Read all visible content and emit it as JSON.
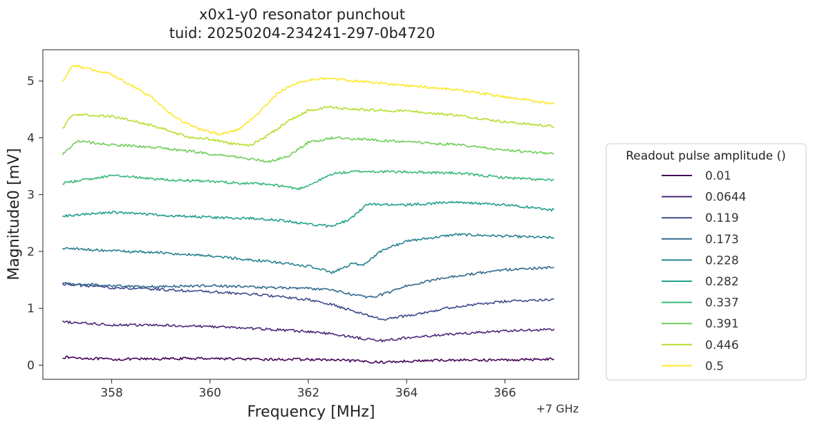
{
  "chart_data": {
    "type": "line",
    "title": "x0x1-y0 resonator punchout",
    "subtitle": "tuid: 20250204-234241-297-0b4720",
    "xlabel": "Frequency [MHz]",
    "ylabel": "Magnitude0 [mV]",
    "x_offset_label": "+7 GHz",
    "xlim": [
      356.6,
      367.5
    ],
    "ylim": [
      -0.25,
      5.55
    ],
    "xticks": [
      358,
      360,
      362,
      364,
      366
    ],
    "yticks": [
      0,
      1,
      2,
      3,
      4,
      5
    ],
    "grid": false,
    "legend": {
      "title": "Readout pulse amplitude ()",
      "placement": "right-center"
    },
    "series": [
      {
        "name": "0.01",
        "color": "#440154",
        "x": [
          357,
          358,
          359,
          360,
          361,
          362,
          362.5,
          363,
          363.5,
          364,
          365,
          366,
          367
        ],
        "y": [
          0.14,
          0.1,
          0.11,
          0.12,
          0.1,
          0.1,
          0.09,
          0.07,
          0.05,
          0.07,
          0.09,
          0.09,
          0.11
        ]
      },
      {
        "name": "0.0644",
        "color": "#482878",
        "x": [
          357,
          358,
          359,
          360,
          361,
          362,
          362.5,
          363,
          363.5,
          364,
          365,
          366,
          367
        ],
        "y": [
          0.76,
          0.71,
          0.7,
          0.68,
          0.64,
          0.59,
          0.55,
          0.48,
          0.43,
          0.48,
          0.55,
          0.6,
          0.63
        ]
      },
      {
        "name": "0.119",
        "color": "#3e4989",
        "x": [
          357,
          358,
          359,
          360,
          361,
          362,
          362.5,
          363,
          363.5,
          364,
          365,
          366,
          367
        ],
        "y": [
          1.43,
          1.36,
          1.33,
          1.29,
          1.24,
          1.15,
          1.06,
          0.93,
          0.8,
          0.87,
          1.03,
          1.12,
          1.16
        ]
      },
      {
        "name": "0.173",
        "color": "#31688e",
        "x": [
          357,
          358,
          359,
          360,
          361,
          362,
          362.5,
          363,
          363.3,
          363.6,
          364,
          365,
          366,
          367
        ],
        "y": [
          1.44,
          1.4,
          1.38,
          1.4,
          1.37,
          1.35,
          1.32,
          1.22,
          1.19,
          1.27,
          1.4,
          1.57,
          1.68,
          1.72
        ]
      },
      {
        "name": "0.228",
        "color": "#26828e",
        "x": [
          357,
          358,
          359,
          360,
          361,
          362,
          362.5,
          362.9,
          363.1,
          363.5,
          364,
          365,
          366,
          367
        ],
        "y": [
          2.06,
          2.01,
          1.98,
          1.92,
          1.84,
          1.74,
          1.63,
          1.79,
          1.76,
          2.02,
          2.18,
          2.3,
          2.27,
          2.24
        ]
      },
      {
        "name": "0.282",
        "color": "#1f9e89",
        "x": [
          357,
          358,
          359,
          360,
          361,
          361.5,
          362,
          362.4,
          362.6,
          362.9,
          363.2,
          364,
          365,
          366,
          367
        ],
        "y": [
          2.62,
          2.69,
          2.64,
          2.6,
          2.58,
          2.54,
          2.48,
          2.45,
          2.47,
          2.6,
          2.83,
          2.82,
          2.87,
          2.82,
          2.73
        ]
      },
      {
        "name": "0.337",
        "color": "#35b779",
        "x": [
          357,
          358,
          359,
          360,
          361,
          361.5,
          361.8,
          362.1,
          362.5,
          363,
          364,
          365,
          366,
          367
        ],
        "y": [
          3.2,
          3.34,
          3.27,
          3.23,
          3.19,
          3.15,
          3.1,
          3.2,
          3.37,
          3.41,
          3.4,
          3.38,
          3.3,
          3.25
        ]
      },
      {
        "name": "0.391",
        "color": "#6ece58",
        "x": [
          357,
          357.3,
          358,
          359,
          360,
          360.7,
          361.2,
          361.6,
          362,
          362.5,
          363,
          364,
          365,
          366,
          367
        ],
        "y": [
          3.72,
          3.94,
          3.88,
          3.82,
          3.72,
          3.64,
          3.58,
          3.68,
          3.92,
          4.0,
          3.98,
          3.93,
          3.88,
          3.78,
          3.72
        ]
      },
      {
        "name": "0.446",
        "color": "#b5de2b",
        "x": [
          357,
          357.2,
          358,
          359,
          359.6,
          360,
          360.4,
          360.8,
          361.2,
          361.6,
          362,
          362.4,
          363,
          364,
          365,
          366,
          367
        ],
        "y": [
          4.16,
          4.42,
          4.38,
          4.18,
          4.0,
          3.98,
          3.9,
          3.86,
          4.05,
          4.3,
          4.48,
          4.54,
          4.5,
          4.47,
          4.4,
          4.28,
          4.2
        ]
      },
      {
        "name": "0.5",
        "color": "#fde725",
        "x": [
          357,
          357.2,
          358,
          358.8,
          359.3,
          359.8,
          360.2,
          360.6,
          361,
          361.4,
          361.8,
          362.3,
          363,
          364,
          365,
          366,
          367
        ],
        "y": [
          4.98,
          5.28,
          5.12,
          4.72,
          4.35,
          4.15,
          4.06,
          4.15,
          4.45,
          4.8,
          4.98,
          5.05,
          5.0,
          4.92,
          4.85,
          4.72,
          4.6
        ]
      }
    ]
  }
}
